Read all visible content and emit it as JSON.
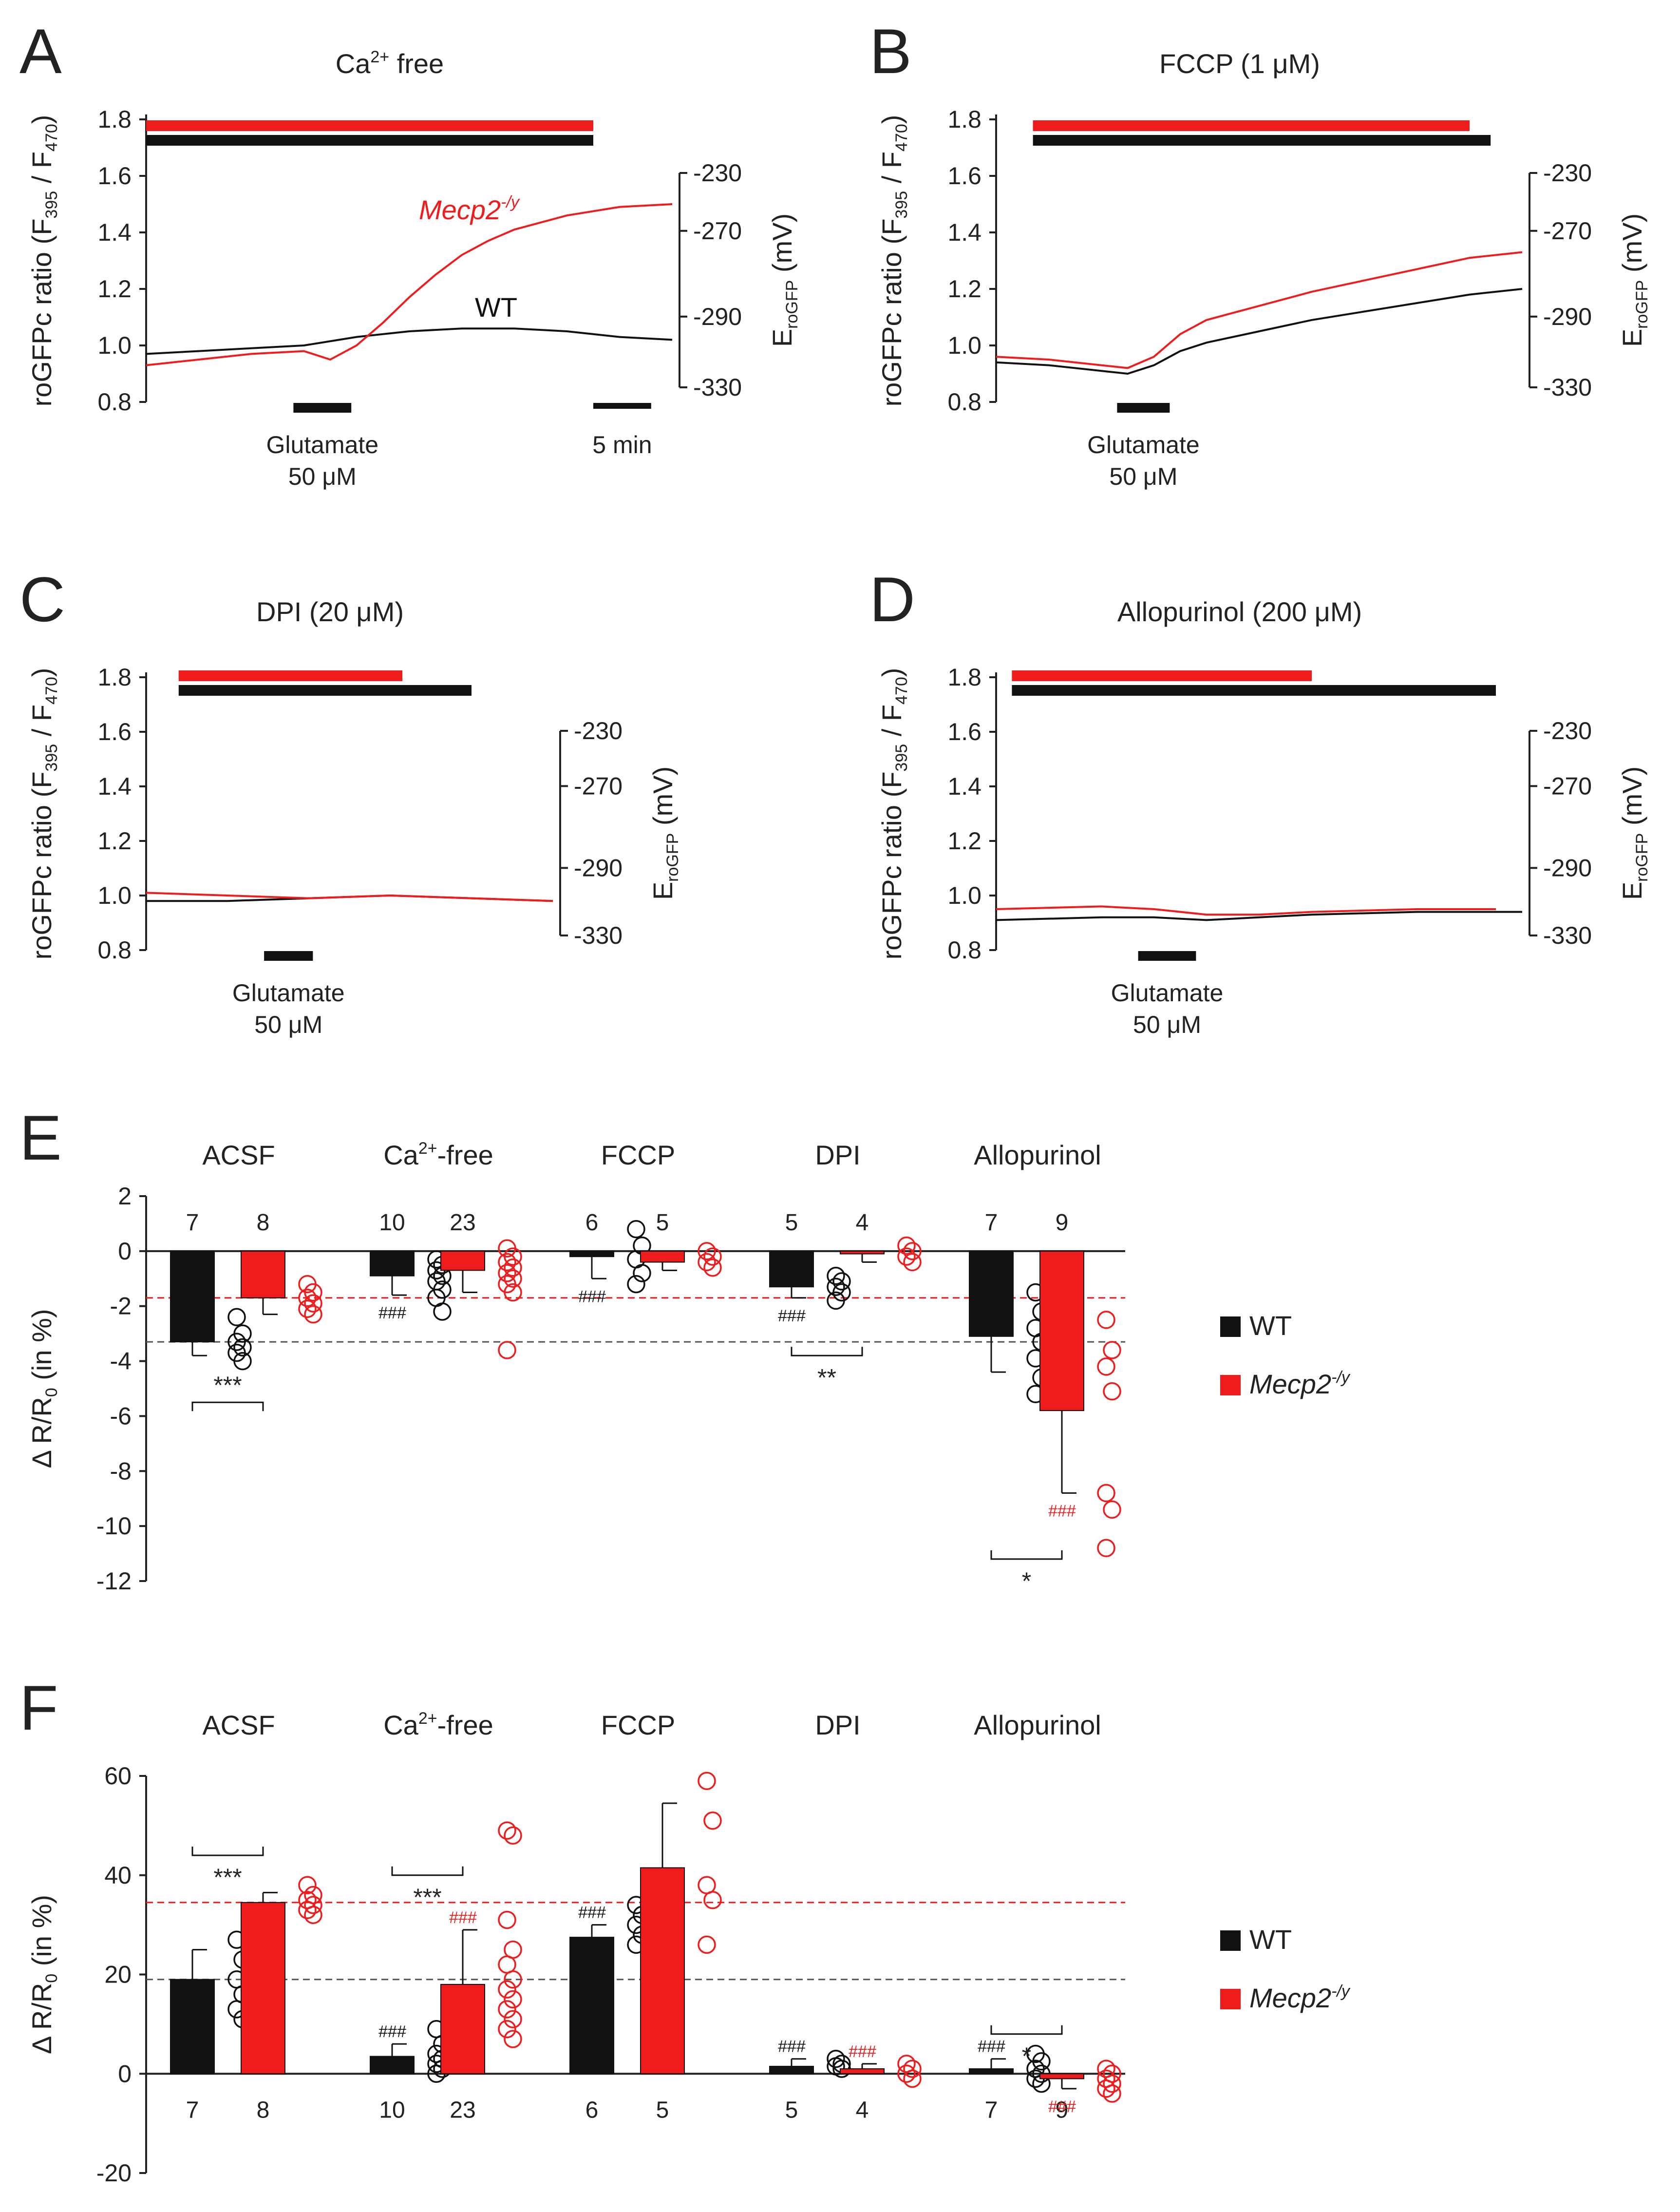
{
  "colors": {
    "wt": "#111111",
    "mecp2": "#ee1c1c",
    "axis": "#222222"
  },
  "trace_panels": [
    {
      "letter": "A",
      "condition": {
        "base": "Ca",
        "sup": "2+",
        "rest": " free"
      },
      "ylabel": {
        "main": "roGFPc ratio (F",
        "sub1": "395",
        "mid": " / F",
        "sub2": "470",
        "end": ")"
      },
      "yticks": [
        "1.8",
        "1.6",
        "1.4",
        "1.2",
        "1.0",
        "0.8"
      ],
      "ylim": [
        0.8,
        1.8
      ],
      "right_axis": {
        "ticks": [
          "-230",
          "-270",
          "-290",
          "-330"
        ],
        "label_base": "E",
        "label_sub": "roGFP",
        "label_unit": " (mV)"
      },
      "glutamate": {
        "line1": "Glutamate",
        "line2": "50 μM"
      },
      "scalebar_label": "5 min",
      "trace_labels": [
        {
          "text": "Mecp2",
          "sup": "-/y",
          "series": "mecp2"
        },
        {
          "text": "WT",
          "sup": "",
          "series": "wt"
        }
      ],
      "t_range": [
        0,
        100
      ],
      "bars": {
        "mecp2": [
          0,
          85
        ],
        "wt": [
          0,
          85
        ]
      },
      "glutamate_interval": [
        28,
        39
      ],
      "scalebar_interval": [
        85,
        96
      ],
      "wt_trace": {
        "t": [
          0,
          10,
          20,
          30,
          40,
          50,
          60,
          70,
          80,
          90,
          100
        ],
        "y": [
          0.97,
          0.98,
          0.99,
          1.0,
          1.03,
          1.05,
          1.06,
          1.06,
          1.05,
          1.03,
          1.02
        ]
      },
      "mecp2_trace": {
        "t": [
          0,
          10,
          20,
          30,
          35,
          40,
          45,
          50,
          55,
          60,
          65,
          70,
          80,
          90,
          100
        ],
        "y": [
          0.93,
          0.95,
          0.97,
          0.98,
          0.95,
          1.0,
          1.08,
          1.17,
          1.25,
          1.32,
          1.37,
          1.41,
          1.46,
          1.49,
          1.5
        ]
      }
    },
    {
      "letter": "B",
      "condition": {
        "base": "FCCP (1 μM)",
        "sup": "",
        "rest": ""
      },
      "ylabel": {
        "main": "roGFPc ratio (F",
        "sub1": "395",
        "mid": " / F",
        "sub2": "470",
        "end": ")"
      },
      "yticks": [
        "1.8",
        "1.6",
        "1.4",
        "1.2",
        "1.0",
        "0.8"
      ],
      "ylim": [
        0.8,
        1.8
      ],
      "right_axis": {
        "ticks": [
          "-230",
          "-270",
          "-290",
          "-330"
        ],
        "label_base": "E",
        "label_sub": "roGFP",
        "label_unit": " (mV)"
      },
      "glutamate": {
        "line1": "Glutamate",
        "line2": "50 μM"
      },
      "scalebar_label": "",
      "trace_labels": [],
      "t_range": [
        0,
        100
      ],
      "bars": {
        "mecp2": [
          7,
          90
        ],
        "wt": [
          7,
          94
        ]
      },
      "glutamate_interval": [
        23,
        33
      ],
      "scalebar_interval": null,
      "wt_trace": {
        "t": [
          0,
          10,
          20,
          25,
          30,
          35,
          40,
          50,
          60,
          70,
          80,
          90,
          100
        ],
        "y": [
          0.94,
          0.93,
          0.91,
          0.9,
          0.93,
          0.98,
          1.01,
          1.05,
          1.09,
          1.12,
          1.15,
          1.18,
          1.2
        ]
      },
      "mecp2_trace": {
        "t": [
          0,
          10,
          20,
          25,
          30,
          35,
          40,
          50,
          60,
          70,
          80,
          90,
          100
        ],
        "y": [
          0.96,
          0.95,
          0.93,
          0.92,
          0.96,
          1.04,
          1.09,
          1.14,
          1.19,
          1.23,
          1.27,
          1.31,
          1.33
        ]
      }
    },
    {
      "letter": "C",
      "condition": {
        "base": "DPI (20 μM)",
        "sup": "",
        "rest": ""
      },
      "ylabel": {
        "main": "roGFPc ratio (F",
        "sub1": "395",
        "mid": " / F",
        "sub2": "470",
        "end": ")"
      },
      "yticks": [
        "1.8",
        "1.6",
        "1.4",
        "1.2",
        "1.0",
        "0.8"
      ],
      "ylim": [
        0.8,
        1.8
      ],
      "right_axis": {
        "ticks": [
          "-230",
          "-270",
          "-290",
          "-330"
        ],
        "label_base": "E",
        "label_sub": "roGFP",
        "label_unit": " (mV)"
      },
      "glutamate": {
        "line1": "Glutamate",
        "line2": "50 μM"
      },
      "scalebar_label": "",
      "trace_labels": [],
      "t_range": [
        0,
        100
      ],
      "bars": {
        "mecp2": [
          8,
          63
        ],
        "wt": [
          8,
          80
        ]
      },
      "glutamate_interval": [
        29,
        41
      ],
      "scalebar_interval": null,
      "wt_trace": {
        "t": [
          0,
          20,
          40,
          60,
          80,
          100
        ],
        "y": [
          0.98,
          0.98,
          0.99,
          1.0,
          0.99,
          0.98
        ]
      },
      "mecp2_trace": {
        "t": [
          0,
          20,
          40,
          60,
          80,
          100
        ],
        "y": [
          1.01,
          1.0,
          0.99,
          1.0,
          0.99,
          0.98
        ]
      }
    },
    {
      "letter": "D",
      "condition": {
        "base": "Allopurinol  (200 μM)",
        "sup": "",
        "rest": ""
      },
      "ylabel": {
        "main": "roGFPc ratio (F",
        "sub1": "395",
        "mid": " / F",
        "sub2": "470",
        "end": ")"
      },
      "yticks": [
        "1.8",
        "1.6",
        "1.4",
        "1.2",
        "1.0",
        "0.8"
      ],
      "ylim": [
        0.8,
        1.8
      ],
      "right_axis": {
        "ticks": [
          "-230",
          "-270",
          "-290",
          "-330"
        ],
        "label_base": "E",
        "label_sub": "roGFP",
        "label_unit": " (mV)"
      },
      "glutamate": {
        "line1": "Glutamate",
        "line2": "50 μM"
      },
      "scalebar_label": "",
      "trace_labels": [],
      "t_range": [
        0,
        100
      ],
      "bars": {
        "mecp2": [
          3,
          60
        ],
        "wt": [
          3,
          95
        ]
      },
      "glutamate_interval": [
        27,
        38
      ],
      "scalebar_interval": null,
      "wt_trace": {
        "t": [
          0,
          20,
          30,
          40,
          50,
          60,
          80,
          100
        ],
        "y": [
          0.91,
          0.92,
          0.92,
          0.91,
          0.92,
          0.93,
          0.94,
          0.94
        ]
      },
      "mecp2_trace": {
        "t": [
          0,
          20,
          30,
          40,
          50,
          60,
          80,
          95
        ],
        "y": [
          0.95,
          0.96,
          0.95,
          0.93,
          0.93,
          0.94,
          0.95,
          0.95
        ]
      }
    }
  ],
  "bar_panels": [
    {
      "letter": "E",
      "ylabel": {
        "main": "Δ R/R",
        "sub": "0",
        "end": " (in %)"
      },
      "ylim": [
        -12,
        2
      ],
      "yticks": [
        "2",
        "0",
        "-2",
        "-4",
        "-6",
        "-8",
        "-10",
        "-12"
      ],
      "ytick_values": [
        2,
        0,
        -2,
        -4,
        -6,
        -8,
        -10,
        -12
      ],
      "n_position": "top",
      "ref_lines": {
        "wt": -3.3,
        "mecp2": -1.7
      },
      "legend": {
        "wt": "WT",
        "mecp2_base": "Mecp2",
        "mecp2_sup": "-/y"
      },
      "groups": [
        {
          "name": "ACSF",
          "name_sup": "",
          "name_rest": "",
          "wt": {
            "mean": -3.3,
            "err": 0.5,
            "n": "7",
            "points": [
              -2.4,
              -3.0,
              -3.3,
              -3.5,
              -3.7,
              -4.0
            ]
          },
          "mecp2": {
            "mean": -1.7,
            "err": 0.6,
            "n": "8",
            "points": [
              -1.2,
              -1.5,
              -1.7,
              -1.9,
              -2.1,
              -2.3
            ]
          },
          "wt_hash": "",
          "mecp2_hash": "",
          "sig": {
            "label": "***",
            "y": -5.5,
            "tick_dir": 1
          }
        },
        {
          "name": "Ca",
          "name_sup": "2+",
          "name_rest": "-free",
          "wt": {
            "mean": -0.9,
            "err": 0.7,
            "n": "10",
            "points": [
              -0.3,
              -0.5,
              -0.7,
              -0.9,
              -1.1,
              -1.4,
              -1.7,
              -2.2
            ]
          },
          "mecp2": {
            "mean": -0.7,
            "err": 0.8,
            "n": "23",
            "points": [
              0.1,
              -0.2,
              -0.4,
              -0.6,
              -0.8,
              -1.0,
              -1.2,
              -1.5,
              -3.6
            ]
          },
          "wt_hash": "###",
          "mecp2_hash": "",
          "sig": null
        },
        {
          "name": "FCCP",
          "name_sup": "",
          "name_rest": "",
          "wt": {
            "mean": -0.2,
            "err": 0.8,
            "n": "6",
            "points": [
              0.8,
              0.2,
              -0.3,
              -0.8,
              -1.2
            ]
          },
          "mecp2": {
            "mean": -0.4,
            "err": 0.3,
            "n": "5",
            "points": [
              0.0,
              -0.2,
              -0.4,
              -0.6
            ]
          },
          "wt_hash": "###",
          "mecp2_hash": "",
          "sig": null
        },
        {
          "name": "DPI",
          "name_sup": "",
          "name_rest": "",
          "wt": {
            "mean": -1.3,
            "err": 0.4,
            "n": "5",
            "points": [
              -0.9,
              -1.1,
              -1.3,
              -1.5,
              -1.8
            ]
          },
          "mecp2": {
            "mean": -0.1,
            "err": 0.3,
            "n": "4",
            "points": [
              0.2,
              0.0,
              -0.2,
              -0.4
            ]
          },
          "wt_hash": "###",
          "mecp2_hash": "",
          "sig": {
            "label": "**",
            "y": -3.8,
            "tick_dir": -1
          }
        },
        {
          "name": "Allopurinol",
          "name_sup": "",
          "name_rest": "",
          "wt": {
            "mean": -3.1,
            "err": 1.3,
            "n": "7",
            "points": [
              -1.5,
              -2.2,
              -2.8,
              -3.3,
              -3.9,
              -4.6,
              -5.2
            ]
          },
          "mecp2": {
            "mean": -5.8,
            "err": 3.0,
            "n": "9",
            "points": [
              -2.5,
              -3.6,
              -4.2,
              -5.1,
              -8.8,
              -9.4,
              -10.8
            ]
          },
          "wt_hash": "",
          "mecp2_hash": "###",
          "sig": {
            "label": "*",
            "y": -11.2,
            "tick_dir": -1
          }
        }
      ]
    },
    {
      "letter": "F",
      "ylabel": {
        "main": "Δ R/R",
        "sub": "0",
        "end": " (in %)"
      },
      "ylim": [
        -20,
        60
      ],
      "yticks": [
        "60",
        "40",
        "20",
        "0",
        "-20"
      ],
      "ytick_values": [
        60,
        40,
        20,
        0,
        -20
      ],
      "n_position": "bottom",
      "ref_lines": {
        "wt": 19,
        "mecp2": 34.5
      },
      "legend": {
        "wt": "WT",
        "mecp2_base": "Mecp2",
        "mecp2_sup": "-/y"
      },
      "groups": [
        {
          "name": "ACSF",
          "name_sup": "",
          "name_rest": "",
          "wt": {
            "mean": 19,
            "err": 6,
            "n": "7",
            "points": [
              27,
              23,
              19,
              16,
              13,
              11
            ]
          },
          "mecp2": {
            "mean": 34.5,
            "err": 2,
            "n": "8",
            "points": [
              38,
              36,
              35,
              34,
              33,
              32
            ]
          },
          "wt_hash": "",
          "mecp2_hash": "",
          "sig": {
            "label": "***",
            "y": 44,
            "tick_dir": -1
          }
        },
        {
          "name": "Ca",
          "name_sup": "2+",
          "name_rest": "-free",
          "wt": {
            "mean": 3.5,
            "err": 2.5,
            "n": "10",
            "points": [
              9,
              6,
              4,
              3,
              2,
              1,
              0
            ]
          },
          "mecp2": {
            "mean": 18,
            "err": 11,
            "n": "23",
            "points": [
              49,
              48,
              31,
              25,
              22,
              19,
              17,
              15,
              13,
              11,
              9,
              7
            ]
          },
          "wt_hash": "###",
          "mecp2_hash": "###",
          "sig": {
            "label": "***",
            "y": 40,
            "tick_dir": -1
          }
        },
        {
          "name": "FCCP",
          "name_sup": "",
          "name_rest": "",
          "wt": {
            "mean": 27.5,
            "err": 2.5,
            "n": "6",
            "points": [
              34,
              32,
              30,
              28,
              26
            ]
          },
          "mecp2": {
            "mean": 41.5,
            "err": 13,
            "n": "5",
            "points": [
              59,
              51,
              38,
              35,
              26
            ]
          },
          "wt_hash": "###",
          "mecp2_hash": "",
          "sig": null
        },
        {
          "name": "DPI",
          "name_sup": "",
          "name_rest": "",
          "wt": {
            "mean": 1.5,
            "err": 1.5,
            "n": "5",
            "points": [
              3,
              2,
              1.5,
              1
            ]
          },
          "mecp2": {
            "mean": 1,
            "err": 1,
            "n": "4",
            "points": [
              2,
              1,
              0,
              -1
            ]
          },
          "wt_hash": "###",
          "mecp2_hash": "###",
          "sig": null
        },
        {
          "name": "Allopurinol",
          "name_sup": "",
          "name_rest": "",
          "wt": {
            "mean": 1,
            "err": 2,
            "n": "7",
            "points": [
              4,
              2.5,
              1,
              0,
              -1,
              -2
            ]
          },
          "mecp2": {
            "mean": -1,
            "err": 2,
            "n": "9",
            "points": [
              1,
              0,
              -1,
              -2,
              -3,
              -4
            ]
          },
          "wt_hash": "###",
          "mecp2_hash": "###",
          "sig": {
            "label": "*",
            "y": 8,
            "tick_dir": -1
          }
        }
      ]
    }
  ]
}
